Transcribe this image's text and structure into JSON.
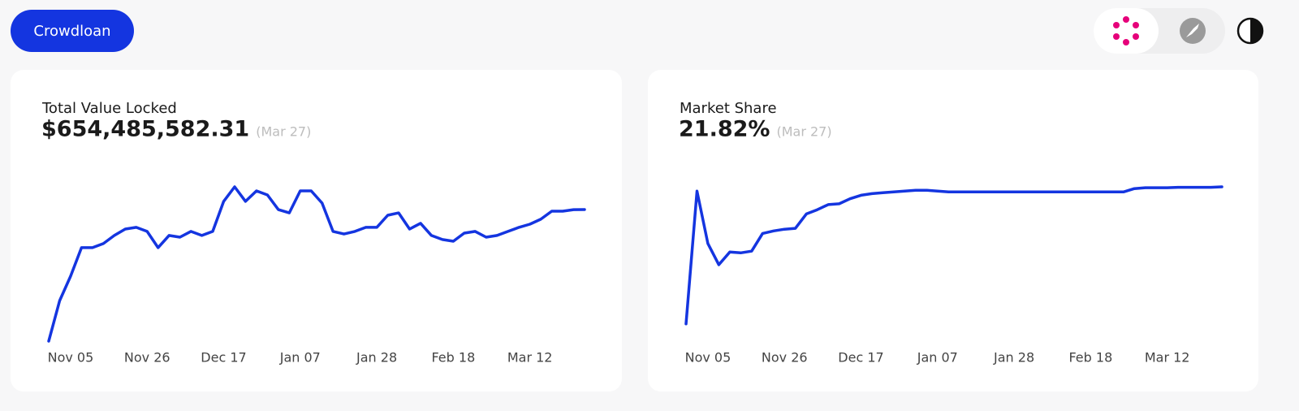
{
  "header": {
    "button": "Crowdloan"
  },
  "chart_data": [
    {
      "type": "line",
      "title": "Total Value Locked",
      "latest": {
        "value": 654485582.31,
        "label": "$654,485,582.31",
        "date": "(Mar 27)"
      },
      "x": [
        "Oct 30",
        "Nov 02",
        "Nov 05",
        "Nov 08",
        "Nov 11",
        "Nov 14",
        "Nov 17",
        "Nov 20",
        "Nov 23",
        "Nov 26",
        "Nov 29",
        "Dec 02",
        "Dec 05",
        "Dec 08",
        "Dec 11",
        "Dec 14",
        "Dec 17",
        "Dec 20",
        "Dec 23",
        "Dec 26",
        "Dec 29",
        "Jan 01",
        "Jan 04",
        "Jan 07",
        "Jan 10",
        "Jan 13",
        "Jan 16",
        "Jan 19",
        "Jan 22",
        "Jan 25",
        "Jan 28",
        "Jan 31",
        "Feb 03",
        "Feb 06",
        "Feb 09",
        "Feb 12",
        "Feb 15",
        "Feb 18",
        "Feb 21",
        "Feb 24",
        "Feb 27",
        "Mar 03",
        "Mar 06",
        "Mar 09",
        "Mar 12",
        "Mar 15",
        "Mar 18",
        "Mar 21",
        "Mar 24",
        "Mar 27"
      ],
      "xticks": [
        "Nov 05",
        "Nov 26",
        "Dec 17",
        "Jan 07",
        "Jan 28",
        "Feb 18",
        "Mar 12"
      ],
      "series": [
        {
          "color": "#1435e0",
          "values": [
            38000000,
            228000000,
            342000000,
            476000000,
            476000000,
            495000000,
            533000000,
            563000000,
            571000000,
            552000000,
            476000000,
            533000000,
            525000000,
            552000000,
            533000000,
            552000000,
            693000000,
            761000000,
            693000000,
            742000000,
            723000000,
            654000000,
            639000000,
            742000000,
            742000000,
            685000000,
            552000000,
            540000000,
            552000000,
            571000000,
            571000000,
            628000000,
            639000000,
            563000000,
            590000000,
            533000000,
            514000000,
            506000000,
            544000000,
            552000000,
            525000000,
            533000000,
            552000000,
            571000000,
            586000000,
            609000000,
            647000000,
            647000000,
            654000000,
            654485582.31
          ]
        }
      ]
    },
    {
      "type": "line",
      "title": "Market Share",
      "latest": {
        "value": 21.82,
        "label": "21.82%",
        "date": "(Mar 27)"
      },
      "x": [
        "Oct 30",
        "Nov 02",
        "Nov 05",
        "Nov 08",
        "Nov 11",
        "Nov 14",
        "Nov 17",
        "Nov 20",
        "Nov 23",
        "Nov 26",
        "Nov 29",
        "Dec 02",
        "Dec 05",
        "Dec 08",
        "Dec 11",
        "Dec 14",
        "Dec 17",
        "Dec 20",
        "Dec 23",
        "Dec 26",
        "Dec 29",
        "Jan 01",
        "Jan 04",
        "Jan 07",
        "Jan 10",
        "Jan 13",
        "Jan 16",
        "Jan 19",
        "Jan 22",
        "Jan 25",
        "Jan 28",
        "Jan 31",
        "Feb 03",
        "Feb 06",
        "Feb 09",
        "Feb 12",
        "Feb 15",
        "Feb 18",
        "Feb 21",
        "Feb 24",
        "Feb 27",
        "Mar 03",
        "Mar 06",
        "Mar 09",
        "Mar 12",
        "Mar 15",
        "Mar 18",
        "Mar 21",
        "Mar 24",
        "Mar 27"
      ],
      "xticks": [
        "Nov 05",
        "Nov 26",
        "Dec 17",
        "Jan 07",
        "Jan 28",
        "Feb 18",
        "Mar 12"
      ],
      "series": [
        {
          "color": "#1435e0",
          "values": [
            3.41,
            21.24,
            14.2,
            11.36,
            13.06,
            12.95,
            13.18,
            15.56,
            15.9,
            16.13,
            16.24,
            18.18,
            18.74,
            19.43,
            19.54,
            20.22,
            20.68,
            20.9,
            21.02,
            21.13,
            21.24,
            21.36,
            21.36,
            21.24,
            21.13,
            21.13,
            21.13,
            21.13,
            21.13,
            21.13,
            21.13,
            21.13,
            21.13,
            21.13,
            21.13,
            21.13,
            21.13,
            21.13,
            21.13,
            21.13,
            21.13,
            21.58,
            21.7,
            21.7,
            21.7,
            21.75,
            21.75,
            21.75,
            21.75,
            21.82
          ]
        }
      ]
    }
  ]
}
